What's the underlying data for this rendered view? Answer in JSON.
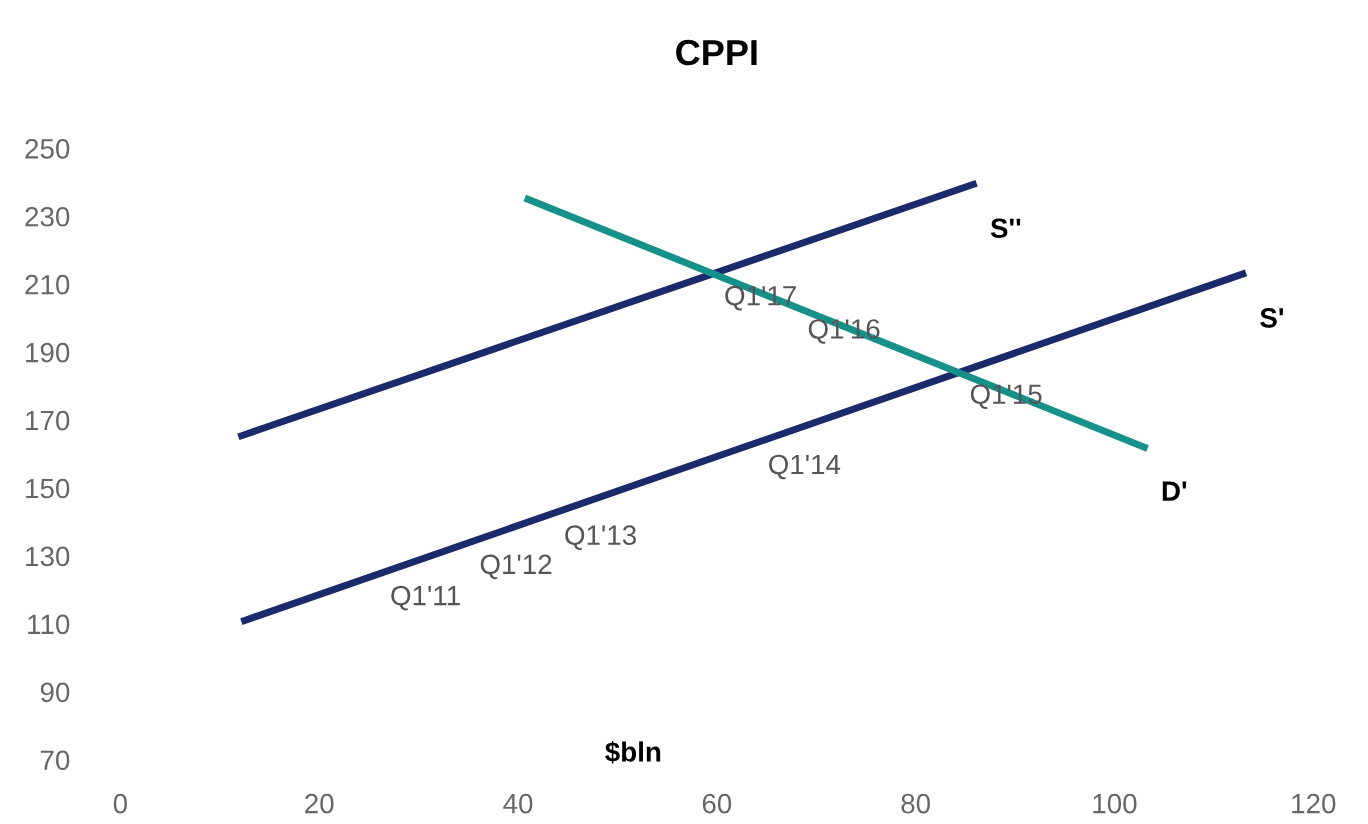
{
  "chart_data": {
    "type": "line",
    "title": "CPPI",
    "xlabel": "$bln",
    "series": [
      {
        "name": "S'",
        "color": "#1b2a6b",
        "x": [
          12.5,
          112.9
        ],
        "values": [
          111,
          213
        ]
      },
      {
        "name": "S''",
        "color": "#1b2a6b",
        "x": [
          12.2,
          85.8
        ],
        "values": [
          165.4,
          239.4
        ]
      },
      {
        "name": "D'",
        "color": "#16918a",
        "x": [
          41,
          103
        ],
        "values": [
          235,
          162
        ]
      }
    ],
    "annotations": [
      {
        "text": "Q1'11",
        "x": 26,
        "y": 124.7
      },
      {
        "text": "Q1'12",
        "x": 35,
        "y": 133.9
      },
      {
        "text": "Q1'13",
        "x": 43.5,
        "y": 142.5
      },
      {
        "text": "Q1'14",
        "x": 64,
        "y": 163.3
      },
      {
        "text": "Q1'15",
        "x": 84.3,
        "y": 184
      },
      {
        "text": "Q1'16",
        "x": 68,
        "y": 203.2
      },
      {
        "text": "Q1'17",
        "x": 59.6,
        "y": 213
      }
    ],
    "xlim": [
      0,
      120
    ],
    "ylim": [
      70,
      250
    ],
    "xticks": [
      0,
      20,
      40,
      60,
      80,
      100,
      120
    ],
    "yticks": [
      70,
      90,
      110,
      130,
      150,
      170,
      190,
      210,
      230,
      250
    ],
    "grid": false,
    "legend": false,
    "marker": "none",
    "line_style": "solid"
  }
}
